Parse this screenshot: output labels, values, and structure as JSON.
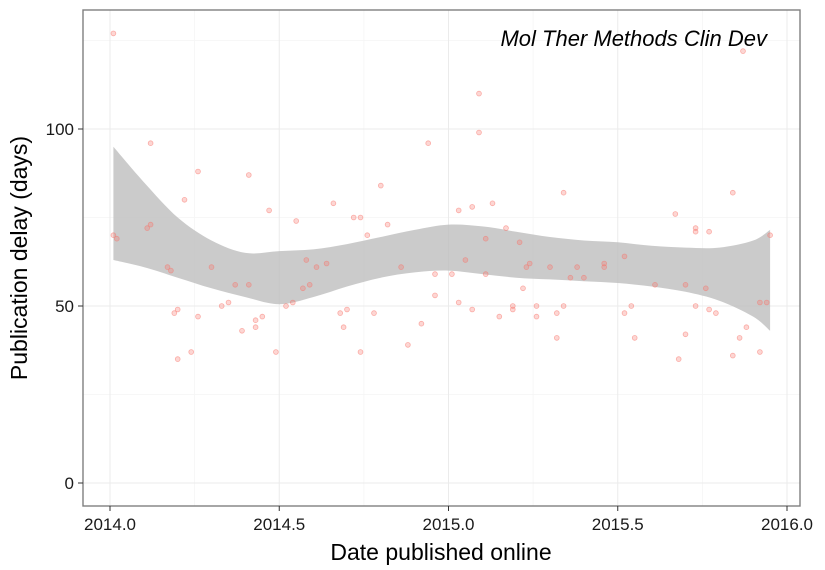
{
  "chart_data": {
    "type": "scatter",
    "title": "Mol Ther Methods Clin Dev",
    "xlabel": "Date published online",
    "ylabel": "Publication delay (days)",
    "xlim": [
      1.9895,
      2.0035
    ],
    "ylim": [
      -6,
      134
    ],
    "x_ticks": [
      2014.0,
      2014.5,
      2015.0,
      2015.5,
      2016.0
    ],
    "x_tick_labels": [
      "2014.0",
      "2014.5",
      "2015.0",
      "2015.5",
      "2016.0"
    ],
    "y_ticks": [
      0,
      50,
      100
    ],
    "y_tick_labels": [
      "0",
      "50",
      "100"
    ],
    "grid": true,
    "legend": "none",
    "colors": {
      "points": "#f8766d",
      "ribbon": "#bebebe",
      "panel_border": "#7f7f7f",
      "grid_major": "#ebebeb",
      "grid_minor": "#f5f5f5"
    },
    "points": [
      {
        "x": 2014.01,
        "y": 127
      },
      {
        "x": 2014.01,
        "y": 70
      },
      {
        "x": 2014.02,
        "y": 69
      },
      {
        "x": 2014.11,
        "y": 72
      },
      {
        "x": 2014.12,
        "y": 73
      },
      {
        "x": 2014.12,
        "y": 96
      },
      {
        "x": 2014.17,
        "y": 61
      },
      {
        "x": 2014.18,
        "y": 60
      },
      {
        "x": 2014.19,
        "y": 48
      },
      {
        "x": 2014.2,
        "y": 49
      },
      {
        "x": 2014.2,
        "y": 35
      },
      {
        "x": 2014.22,
        "y": 80
      },
      {
        "x": 2014.24,
        "y": 37
      },
      {
        "x": 2014.26,
        "y": 47
      },
      {
        "x": 2014.26,
        "y": 88
      },
      {
        "x": 2014.3,
        "y": 61
      },
      {
        "x": 2014.33,
        "y": 50
      },
      {
        "x": 2014.35,
        "y": 51
      },
      {
        "x": 2014.37,
        "y": 56
      },
      {
        "x": 2014.39,
        "y": 43
      },
      {
        "x": 2014.41,
        "y": 56
      },
      {
        "x": 2014.41,
        "y": 87
      },
      {
        "x": 2014.43,
        "y": 44
      },
      {
        "x": 2014.43,
        "y": 46
      },
      {
        "x": 2014.45,
        "y": 47
      },
      {
        "x": 2014.47,
        "y": 77
      },
      {
        "x": 2014.49,
        "y": 37
      },
      {
        "x": 2014.52,
        "y": 50
      },
      {
        "x": 2014.54,
        "y": 51
      },
      {
        "x": 2014.55,
        "y": 74
      },
      {
        "x": 2014.57,
        "y": 55
      },
      {
        "x": 2014.58,
        "y": 63
      },
      {
        "x": 2014.59,
        "y": 56
      },
      {
        "x": 2014.61,
        "y": 61
      },
      {
        "x": 2014.64,
        "y": 62
      },
      {
        "x": 2014.66,
        "y": 79
      },
      {
        "x": 2014.68,
        "y": 48
      },
      {
        "x": 2014.69,
        "y": 44
      },
      {
        "x": 2014.7,
        "y": 49
      },
      {
        "x": 2014.72,
        "y": 75
      },
      {
        "x": 2014.74,
        "y": 75
      },
      {
        "x": 2014.74,
        "y": 37
      },
      {
        "x": 2014.76,
        "y": 70
      },
      {
        "x": 2014.78,
        "y": 48
      },
      {
        "x": 2014.8,
        "y": 84
      },
      {
        "x": 2014.82,
        "y": 73
      },
      {
        "x": 2014.86,
        "y": 61
      },
      {
        "x": 2014.88,
        "y": 39
      },
      {
        "x": 2014.92,
        "y": 45
      },
      {
        "x": 2014.94,
        "y": 96
      },
      {
        "x": 2014.96,
        "y": 53
      },
      {
        "x": 2014.96,
        "y": 59
      },
      {
        "x": 2015.01,
        "y": 59
      },
      {
        "x": 2015.03,
        "y": 77
      },
      {
        "x": 2015.03,
        "y": 51
      },
      {
        "x": 2015.05,
        "y": 63
      },
      {
        "x": 2015.07,
        "y": 78
      },
      {
        "x": 2015.07,
        "y": 49
      },
      {
        "x": 2015.09,
        "y": 110
      },
      {
        "x": 2015.09,
        "y": 99
      },
      {
        "x": 2015.11,
        "y": 69
      },
      {
        "x": 2015.11,
        "y": 59
      },
      {
        "x": 2015.13,
        "y": 79
      },
      {
        "x": 2015.15,
        "y": 47
      },
      {
        "x": 2015.17,
        "y": 72
      },
      {
        "x": 2015.19,
        "y": 50
      },
      {
        "x": 2015.19,
        "y": 49
      },
      {
        "x": 2015.21,
        "y": 68
      },
      {
        "x": 2015.22,
        "y": 55
      },
      {
        "x": 2015.23,
        "y": 61
      },
      {
        "x": 2015.24,
        "y": 62
      },
      {
        "x": 2015.26,
        "y": 50
      },
      {
        "x": 2015.26,
        "y": 47
      },
      {
        "x": 2015.3,
        "y": 61
      },
      {
        "x": 2015.32,
        "y": 48
      },
      {
        "x": 2015.32,
        "y": 41
      },
      {
        "x": 2015.34,
        "y": 82
      },
      {
        "x": 2015.34,
        "y": 50
      },
      {
        "x": 2015.36,
        "y": 58
      },
      {
        "x": 2015.38,
        "y": 61
      },
      {
        "x": 2015.4,
        "y": 58
      },
      {
        "x": 2015.46,
        "y": 61
      },
      {
        "x": 2015.46,
        "y": 62
      },
      {
        "x": 2015.52,
        "y": 64
      },
      {
        "x": 2015.52,
        "y": 48
      },
      {
        "x": 2015.54,
        "y": 50
      },
      {
        "x": 2015.55,
        "y": 41
      },
      {
        "x": 2015.61,
        "y": 56
      },
      {
        "x": 2015.67,
        "y": 76
      },
      {
        "x": 2015.68,
        "y": 35
      },
      {
        "x": 2015.7,
        "y": 42
      },
      {
        "x": 2015.7,
        "y": 56
      },
      {
        "x": 2015.73,
        "y": 72
      },
      {
        "x": 2015.73,
        "y": 71
      },
      {
        "x": 2015.73,
        "y": 50
      },
      {
        "x": 2015.76,
        "y": 55
      },
      {
        "x": 2015.77,
        "y": 71
      },
      {
        "x": 2015.77,
        "y": 49
      },
      {
        "x": 2015.79,
        "y": 48
      },
      {
        "x": 2015.84,
        "y": 82
      },
      {
        "x": 2015.84,
        "y": 36
      },
      {
        "x": 2015.86,
        "y": 41
      },
      {
        "x": 2015.87,
        "y": 122
      },
      {
        "x": 2015.88,
        "y": 44
      },
      {
        "x": 2015.92,
        "y": 37
      },
      {
        "x": 2015.92,
        "y": 51
      },
      {
        "x": 2015.94,
        "y": 51
      },
      {
        "x": 2015.95,
        "y": 70
      }
    ],
    "smooth_band": {
      "x": [
        2014.01,
        2014.1,
        2014.2,
        2014.3,
        2014.4,
        2014.5,
        2014.6,
        2014.7,
        2014.8,
        2014.9,
        2015.0,
        2015.1,
        2015.2,
        2015.3,
        2015.4,
        2015.5,
        2015.6,
        2015.7,
        2015.8,
        2015.9,
        2015.95
      ],
      "upper": [
        95,
        85,
        75,
        68.5,
        65,
        65.5,
        66,
        67.5,
        69.5,
        71.5,
        73,
        72.5,
        71,
        69.5,
        68.5,
        68,
        67,
        66.5,
        66.5,
        68.5,
        71.5
      ],
      "lower": [
        63,
        61,
        58,
        55,
        52.5,
        50.5,
        52.5,
        55.5,
        58,
        59.5,
        60,
        59,
        58,
        57.5,
        57,
        56.5,
        55.5,
        54,
        51.5,
        47,
        43
      ]
    }
  }
}
